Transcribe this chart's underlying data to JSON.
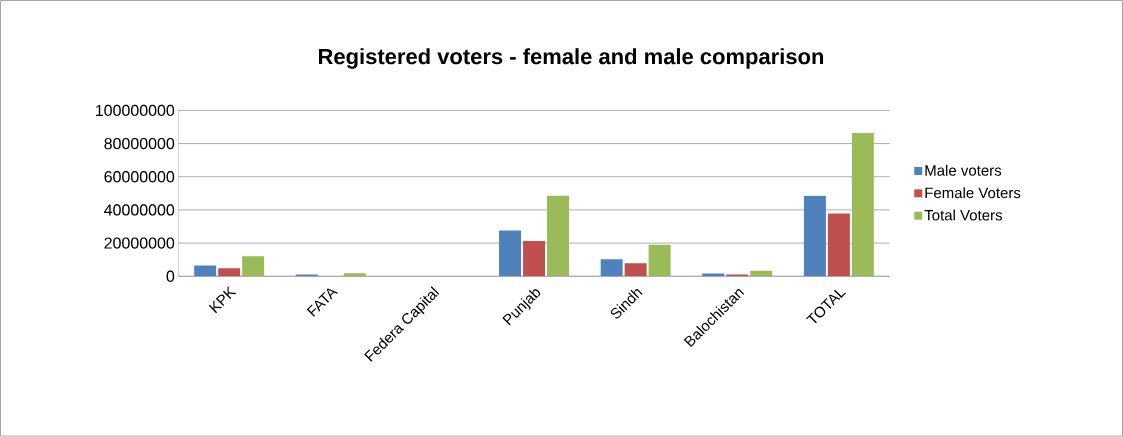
{
  "chart_data": {
    "type": "bar",
    "title": "Registered voters - female and male comparison",
    "categories": [
      "KPK",
      "FATA",
      "Federa Capital",
      "Punjab",
      "Sindh",
      "Balochistan",
      "TOTAL"
    ],
    "series": [
      {
        "name": "Male voters",
        "color": "#4f81bd",
        "values": [
          6500000,
          1000000,
          null,
          27600000,
          10200000,
          1600000,
          48600000
        ]
      },
      {
        "name": "Female Voters",
        "color": "#c0504d",
        "values": [
          4900000,
          null,
          null,
          21200000,
          7800000,
          1000000,
          37800000
        ]
      },
      {
        "name": "Total Voters",
        "color": "#9bbb59",
        "values": [
          12000000,
          1800000,
          null,
          48600000,
          19000000,
          3300000,
          86300000
        ]
      }
    ],
    "ylim": [
      0,
      100000000
    ],
    "yticks": [
      0,
      20000000,
      40000000,
      60000000,
      80000000,
      100000000
    ],
    "grid": "y",
    "legend": "right"
  }
}
